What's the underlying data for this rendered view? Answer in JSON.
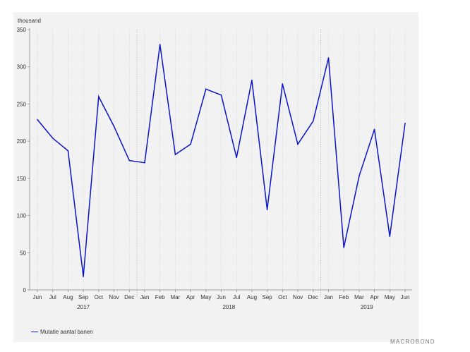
{
  "brand": "MACROBOND",
  "chart_data": {
    "type": "line",
    "unit_label": "thousand",
    "categories": [
      "Jun",
      "Jul",
      "Aug",
      "Sep",
      "Oct",
      "Nov",
      "Dec",
      "Jan",
      "Feb",
      "Mar",
      "Apr",
      "May",
      "Jun",
      "Jul",
      "Aug",
      "Sep",
      "Oct",
      "Nov",
      "Dec",
      "Jan",
      "Feb",
      "Mar",
      "Apr",
      "May",
      "Jun"
    ],
    "years": [
      {
        "label": "2017",
        "start_index": 0,
        "end_index": 6
      },
      {
        "label": "2018",
        "start_index": 7,
        "end_index": 18
      },
      {
        "label": "2019",
        "start_index": 19,
        "end_index": 24
      }
    ],
    "series": [
      {
        "name": "Mutatie aantal banen",
        "color": "#0a14c8",
        "values": [
          229,
          204,
          187,
          18,
          260,
          220,
          174,
          171,
          330,
          182,
          196,
          270,
          262,
          178,
          282,
          108,
          277,
          196,
          227,
          312,
          57,
          153,
          216,
          72,
          224
        ]
      }
    ],
    "ylim": [
      0,
      350
    ],
    "yticks": [
      0,
      50,
      100,
      150,
      200,
      250,
      300,
      350
    ],
    "grid": true,
    "legend_position": "bottom-left"
  }
}
